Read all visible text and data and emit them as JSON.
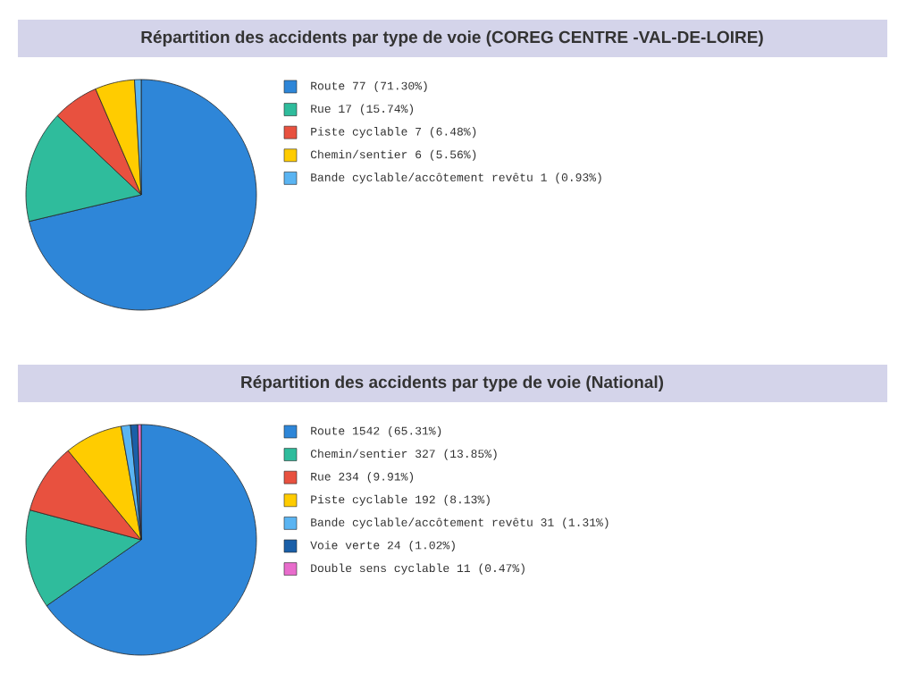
{
  "chart_data": [
    {
      "type": "pie",
      "title": "Répartition des accidents par type de voie (COREG CENTRE -VAL-DE-LOIRE)",
      "categories": [
        "Route",
        "Rue",
        "Piste cyclable",
        "Chemin/sentier",
        "Bande cyclable/accôtement revêtu"
      ],
      "values": [
        77,
        17,
        7,
        6,
        1
      ],
      "value_labels": [
        "77 (71.30%)",
        "17 (15.74%)",
        "7 (6.48%)",
        "6 (5.56%)",
        "1 (0.93%)"
      ],
      "colors": [
        "#2e86d8",
        "#2fbc9c",
        "#e8513f",
        "#ffcc00",
        "#5ab4f2"
      ],
      "legend": "right"
    },
    {
      "type": "pie",
      "title": "Répartition des accidents par type de voie (National)",
      "categories": [
        "Route",
        "Chemin/sentier",
        "Rue",
        "Piste cyclable",
        "Bande cyclable/accôtement revêtu",
        "Voie verte",
        "Double sens cyclable"
      ],
      "values": [
        1542,
        327,
        234,
        192,
        31,
        24,
        11
      ],
      "value_labels": [
        "1542 (65.31%)",
        "327 (13.85%)",
        "234 (9.91%)",
        "192 (8.13%)",
        "31 (1.31%)",
        "24 (1.02%)",
        "11 (0.47%)"
      ],
      "colors": [
        "#2e86d8",
        "#2fbc9c",
        "#e8513f",
        "#ffcc00",
        "#5ab4f2",
        "#1a5fa8",
        "#e86ccc"
      ],
      "legend": "right"
    }
  ]
}
